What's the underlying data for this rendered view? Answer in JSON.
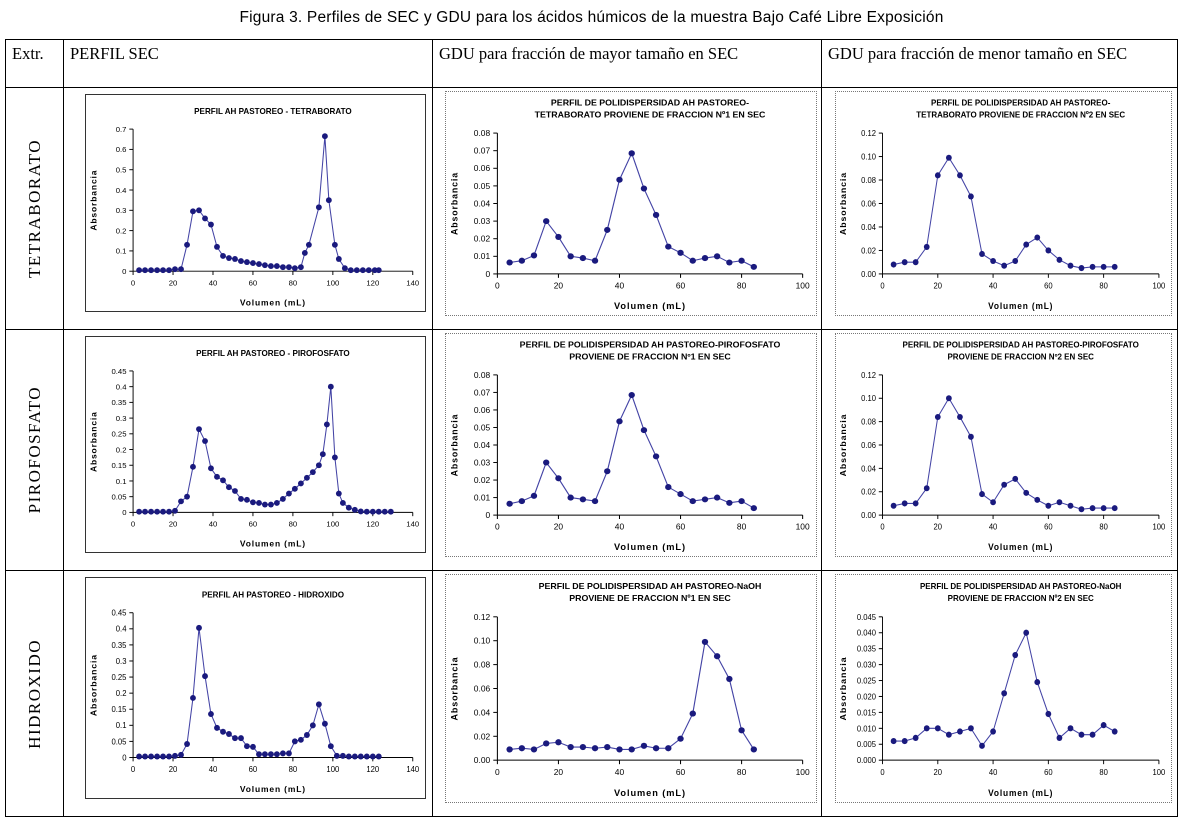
{
  "figure_title": "Figura 3. Perfiles de SEC y GDU para los ácidos húmicos de la muestra Bajo Café Libre Exposición",
  "table": {
    "headers": [
      "Extr.",
      "PERFIL SEC",
      "GDU para fracción de mayor tamaño en SEC",
      "GDU para fracción de menor tamaño en SEC"
    ],
    "row_labels": [
      "TETRABORATO",
      "PIROFOSFATO",
      "HIDROXIDO"
    ]
  },
  "colors": {
    "marker": "#1a1a7e",
    "line": "#4343a5",
    "axis": "#000000"
  },
  "chart_data": [
    {
      "type": "line",
      "row": "TETRABORATO",
      "title_lines": [
        "PERFIL AH  PASTOREO - TETRABORATO"
      ],
      "xlabel": "Volumen (mL)",
      "ylabel": "Absorbancia",
      "xlim": [
        0,
        140
      ],
      "xticks": [
        0,
        20,
        40,
        60,
        80,
        100,
        120,
        140
      ],
      "ylim": [
        0,
        0.7
      ],
      "yticks": [
        "0",
        "0.1",
        "0.2",
        "0.3",
        "0.4",
        "0.5",
        "0.6",
        "0.7"
      ],
      "grid": false,
      "x": [
        3,
        6,
        9,
        12,
        15,
        18,
        21,
        24,
        27,
        30,
        33,
        36,
        39,
        42,
        45,
        48,
        51,
        54,
        57,
        60,
        63,
        66,
        69,
        72,
        75,
        78,
        81,
        84,
        86,
        88,
        93,
        96,
        98,
        101,
        103,
        106,
        109,
        112,
        115,
        118,
        121,
        123
      ],
      "y": [
        0.005,
        0.005,
        0.005,
        0.005,
        0.005,
        0.005,
        0.01,
        0.01,
        0.13,
        0.295,
        0.3,
        0.26,
        0.23,
        0.12,
        0.075,
        0.065,
        0.06,
        0.05,
        0.045,
        0.04,
        0.035,
        0.03,
        0.025,
        0.025,
        0.02,
        0.02,
        0.015,
        0.02,
        0.09,
        0.13,
        0.315,
        0.665,
        0.35,
        0.13,
        0.06,
        0.015,
        0.005,
        0.005,
        0.005,
        0.005,
        0.005,
        0.005
      ]
    },
    {
      "type": "line",
      "row": "TETRABORATO",
      "title_lines": [
        "PERFIL DE POLIDISPERSIDAD AH PASTOREO-",
        "TETRABORATO PROVIENE DE FRACCION Nº1 EN SEC"
      ],
      "xlabel": "Volumen (mL)",
      "ylabel": "Absorbancia",
      "xlim": [
        0,
        100
      ],
      "xticks": [
        0,
        20,
        40,
        60,
        80,
        100
      ],
      "ylim": [
        0,
        0.08
      ],
      "yticks": [
        "0",
        "0.01",
        "0.02",
        "0.03",
        "0.04",
        "0.05",
        "0.06",
        "0.07",
        "0.08"
      ],
      "grid": false,
      "x": [
        4,
        8,
        12,
        16,
        20,
        24,
        28,
        32,
        36,
        40,
        44,
        48,
        52,
        56,
        60,
        64,
        68,
        72,
        76,
        80,
        84
      ],
      "y": [
        0.0065,
        0.0075,
        0.0105,
        0.03,
        0.021,
        0.01,
        0.009,
        0.0075,
        0.025,
        0.0535,
        0.0685,
        0.0485,
        0.0335,
        0.0155,
        0.012,
        0.0075,
        0.009,
        0.01,
        0.0065,
        0.0075,
        0.004
      ]
    },
    {
      "type": "line",
      "row": "TETRABORATO",
      "title_lines": [
        "PERFIL DE POLIDISPERSIDAD AH PASTOREO-",
        "TETRABORATO PROVIENE DE FRACCION Nº2 EN SEC"
      ],
      "xlabel": "Volumen (mL)",
      "ylabel": "Absorbancia",
      "xlim": [
        0,
        100
      ],
      "xticks": [
        0,
        20,
        40,
        60,
        80,
        100
      ],
      "ylim": [
        0,
        0.12
      ],
      "yticks": [
        "0.00",
        "0.02",
        "0.04",
        "0.06",
        "0.08",
        "0.10",
        "0.12"
      ],
      "grid": false,
      "x": [
        4,
        8,
        12,
        16,
        20,
        24,
        28,
        32,
        36,
        40,
        44,
        48,
        52,
        56,
        60,
        64,
        68,
        72,
        76,
        80,
        84
      ],
      "y": [
        0.008,
        0.01,
        0.01,
        0.023,
        0.084,
        0.099,
        0.084,
        0.066,
        0.017,
        0.011,
        0.007,
        0.011,
        0.025,
        0.031,
        0.02,
        0.012,
        0.007,
        0.005,
        0.006,
        0.006,
        0.006
      ]
    },
    {
      "type": "line",
      "row": "PIROFOSFATO",
      "title_lines": [
        "PERFIL AH PASTOREO - PIROFOSFATO"
      ],
      "xlabel": "Volumen (mL)",
      "ylabel": "Absorbancia",
      "xlim": [
        0,
        140
      ],
      "xticks": [
        0,
        20,
        40,
        60,
        80,
        100,
        120,
        140
      ],
      "ylim": [
        0,
        0.45
      ],
      "yticks": [
        "0",
        "0.05",
        "0.1",
        "0.15",
        "0.2",
        "0.25",
        "0.3",
        "0.35",
        "0.4",
        "0.45"
      ],
      "grid": false,
      "x": [
        3,
        6,
        9,
        12,
        15,
        18,
        21,
        24,
        27,
        30,
        33,
        36,
        39,
        42,
        45,
        48,
        51,
        54,
        57,
        60,
        63,
        66,
        69,
        72,
        75,
        78,
        81,
        84,
        87,
        90,
        93,
        95,
        97,
        99,
        101,
        103,
        105,
        108,
        111,
        114,
        117,
        120,
        123,
        126,
        129
      ],
      "y": [
        0.002,
        0.002,
        0.002,
        0.002,
        0.002,
        0.002,
        0.005,
        0.035,
        0.05,
        0.145,
        0.265,
        0.227,
        0.14,
        0.113,
        0.102,
        0.08,
        0.068,
        0.043,
        0.04,
        0.032,
        0.03,
        0.025,
        0.025,
        0.03,
        0.043,
        0.06,
        0.075,
        0.092,
        0.11,
        0.128,
        0.15,
        0.185,
        0.28,
        0.4,
        0.175,
        0.06,
        0.03,
        0.015,
        0.008,
        0.003,
        0.002,
        0.002,
        0.002,
        0.002,
        0.002
      ]
    },
    {
      "type": "line",
      "row": "PIROFOSFATO",
      "title_lines": [
        "PERFIL DE POLIDISPERSIDAD AH PASTOREO-PIROFOSFATO",
        "PROVIENE DE FRACCION Nº1 EN SEC"
      ],
      "xlabel": "Volumen (mL)",
      "ylabel": "Absorbancia",
      "xlim": [
        0,
        100
      ],
      "xticks": [
        0,
        20,
        40,
        60,
        80,
        100
      ],
      "ylim": [
        0,
        0.08
      ],
      "yticks": [
        "0",
        "0.01",
        "0.02",
        "0.03",
        "0.04",
        "0.05",
        "0.06",
        "0.07",
        "0.08"
      ],
      "grid": false,
      "x": [
        4,
        8,
        12,
        16,
        20,
        24,
        28,
        32,
        36,
        40,
        44,
        48,
        52,
        56,
        60,
        64,
        68,
        72,
        76,
        80,
        84
      ],
      "y": [
        0.0065,
        0.008,
        0.011,
        0.03,
        0.021,
        0.01,
        0.009,
        0.008,
        0.025,
        0.0535,
        0.0685,
        0.0485,
        0.0335,
        0.016,
        0.012,
        0.008,
        0.009,
        0.01,
        0.007,
        0.008,
        0.004
      ]
    },
    {
      "type": "line",
      "row": "PIROFOSFATO",
      "title_lines": [
        "PERFIL DE POLIDISPERSIDAD AH PASTOREO-PIROFOSFATO",
        "PROVIENE DE FRACCION Nº2 EN SEC"
      ],
      "xlabel": "Volumen (mL)",
      "ylabel": "Absorbancia",
      "xlim": [
        0,
        100
      ],
      "xticks": [
        0,
        20,
        40,
        60,
        80,
        100
      ],
      "ylim": [
        0,
        0.12
      ],
      "yticks": [
        "0.00",
        "0.02",
        "0.04",
        "0.06",
        "0.08",
        "0.10",
        "0.12"
      ],
      "grid": false,
      "x": [
        4,
        8,
        12,
        16,
        20,
        24,
        28,
        32,
        36,
        40,
        44,
        48,
        52,
        56,
        60,
        64,
        68,
        72,
        76,
        80,
        84
      ],
      "y": [
        0.008,
        0.01,
        0.01,
        0.023,
        0.084,
        0.1,
        0.084,
        0.067,
        0.018,
        0.011,
        0.026,
        0.031,
        0.019,
        0.013,
        0.008,
        0.011,
        0.008,
        0.005,
        0.006,
        0.006,
        0.006
      ]
    },
    {
      "type": "line",
      "row": "HIDROXIDO",
      "title_lines": [
        "PERFIL AH PASTOREO - HIDROXIDO"
      ],
      "xlabel": "Volumen (mL)",
      "ylabel": "Absorbancia",
      "xlim": [
        0,
        140
      ],
      "xticks": [
        0,
        20,
        40,
        60,
        80,
        100,
        120,
        140
      ],
      "ylim": [
        0,
        0.45
      ],
      "yticks": [
        "0",
        "0.05",
        "0.1",
        "0.15",
        "0.2",
        "0.25",
        "0.3",
        "0.35",
        "0.4",
        "0.45"
      ],
      "grid": false,
      "x": [
        3,
        6,
        9,
        12,
        15,
        18,
        21,
        24,
        27,
        30,
        33,
        36,
        39,
        42,
        45,
        48,
        51,
        54,
        57,
        60,
        63,
        66,
        69,
        72,
        75,
        78,
        81,
        84,
        87,
        90,
        93,
        96,
        99,
        102,
        105,
        108,
        111,
        114,
        117,
        120,
        123
      ],
      "y": [
        0.003,
        0.003,
        0.003,
        0.003,
        0.003,
        0.003,
        0.005,
        0.008,
        0.042,
        0.185,
        0.403,
        0.253,
        0.135,
        0.092,
        0.08,
        0.073,
        0.06,
        0.06,
        0.035,
        0.033,
        0.01,
        0.01,
        0.01,
        0.01,
        0.013,
        0.013,
        0.05,
        0.055,
        0.07,
        0.1,
        0.165,
        0.105,
        0.035,
        0.005,
        0.005,
        0.003,
        0.003,
        0.003,
        0.003,
        0.003,
        0.003
      ]
    },
    {
      "type": "line",
      "row": "HIDROXIDO",
      "title_lines": [
        "PERFIL DE POLIDISPERSIDAD AH PASTOREO-NaOH",
        "PROVIENE DE FRACCION Nº1 EN SEC"
      ],
      "xlabel": "Volumen (mL)",
      "ylabel": "Absorbancia",
      "xlim": [
        0,
        100
      ],
      "xticks": [
        0,
        20,
        40,
        60,
        80,
        100
      ],
      "ylim": [
        0,
        0.12
      ],
      "yticks": [
        "0.00",
        "0.02",
        "0.04",
        "0.06",
        "0.08",
        "0.10",
        "0.12"
      ],
      "grid": false,
      "x": [
        4,
        8,
        12,
        16,
        20,
        24,
        28,
        32,
        36,
        40,
        44,
        48,
        52,
        56,
        60,
        64,
        68,
        72,
        76,
        80,
        84
      ],
      "y": [
        0.009,
        0.01,
        0.009,
        0.014,
        0.015,
        0.011,
        0.011,
        0.01,
        0.011,
        0.009,
        0.009,
        0.012,
        0.01,
        0.01,
        0.018,
        0.039,
        0.099,
        0.087,
        0.068,
        0.025,
        0.009
      ]
    },
    {
      "type": "line",
      "row": "HIDROXIDO",
      "title_lines": [
        "PERFIL DE POLIDISPERSIDAD AH PASTOREO-NaOH",
        "PROVIENE DE FRACCION Nº2 EN SEC"
      ],
      "xlabel": "Volumen (mL)",
      "ylabel": "Absorbancia",
      "xlim": [
        0,
        100
      ],
      "xticks": [
        0,
        20,
        40,
        60,
        80,
        100
      ],
      "ylim": [
        0,
        0.045
      ],
      "yticks": [
        "0.000",
        "0.005",
        "0.010",
        "0.015",
        "0.020",
        "0.025",
        "0.030",
        "0.035",
        "0.040",
        "0.045"
      ],
      "grid": false,
      "x": [
        4,
        8,
        12,
        16,
        20,
        24,
        28,
        32,
        36,
        40,
        44,
        48,
        52,
        56,
        60,
        64,
        68,
        72,
        76,
        80,
        84
      ],
      "y": [
        0.006,
        0.006,
        0.007,
        0.01,
        0.01,
        0.008,
        0.009,
        0.01,
        0.0045,
        0.009,
        0.021,
        0.033,
        0.04,
        0.0245,
        0.0145,
        0.007,
        0.01,
        0.008,
        0.008,
        0.011,
        0.009
      ]
    }
  ]
}
